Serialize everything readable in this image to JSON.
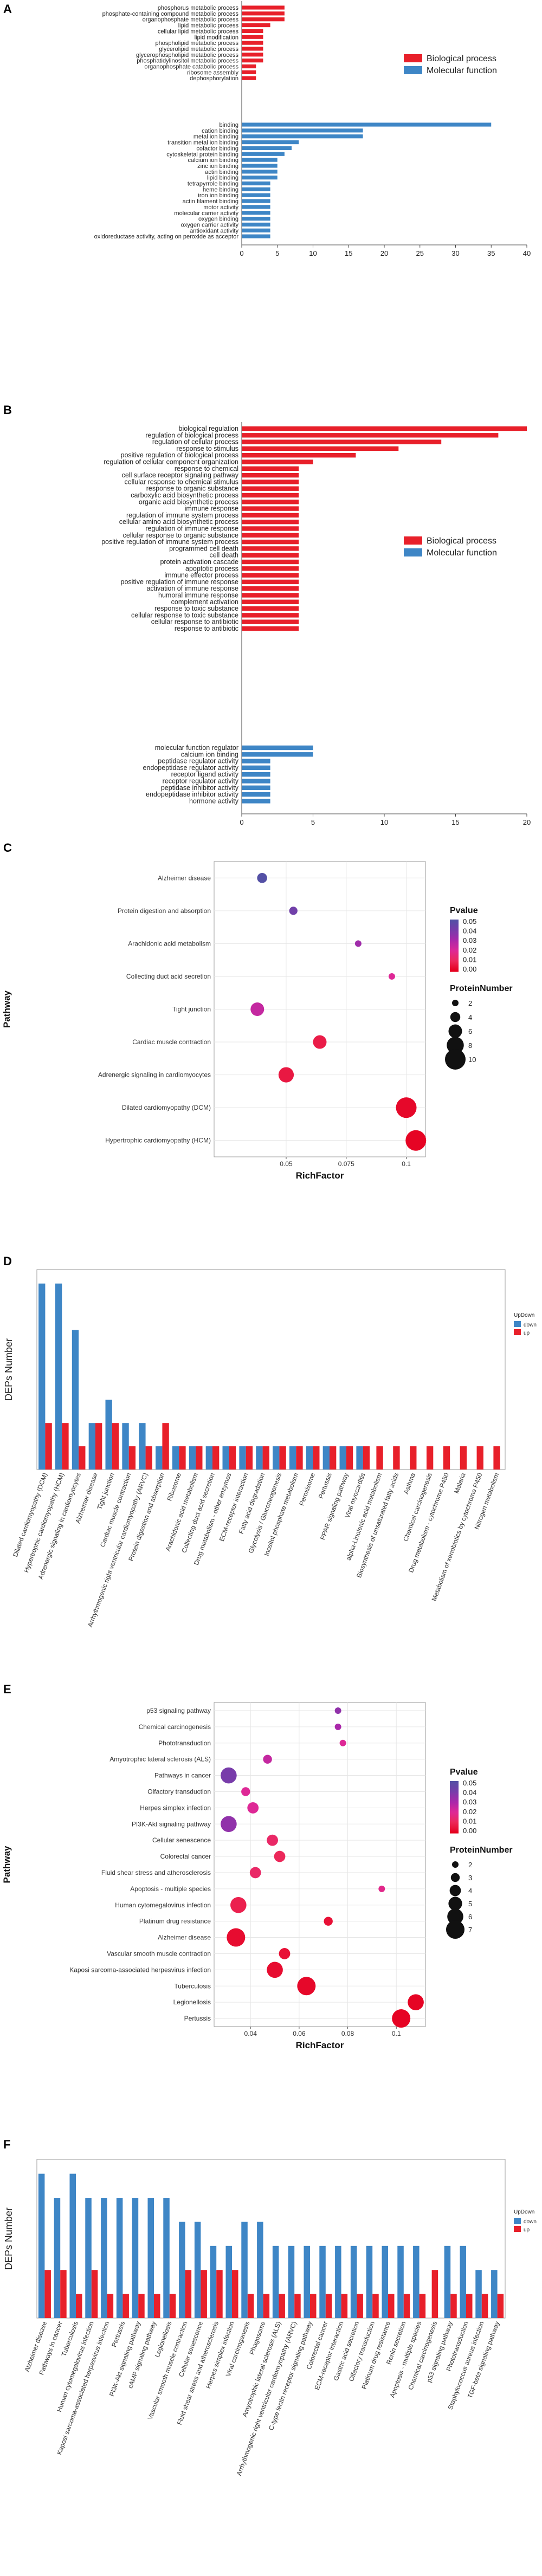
{
  "panels": {
    "A": "A",
    "B": "B",
    "C": "C",
    "D": "D",
    "E": "E",
    "F": "F"
  },
  "chart_data": [
    {
      "id": "A",
      "type": "bar",
      "orientation": "horizontal",
      "legend": [
        {
          "name": "Biological process",
          "color": "#e8202a"
        },
        {
          "name": "Molecular function",
          "color": "#3e86c6"
        }
      ],
      "xticks": [
        0,
        5,
        10,
        15,
        20,
        25,
        30,
        35,
        40
      ],
      "xlim": [
        0,
        40
      ],
      "groups": [
        {
          "name": "Biological process",
          "color": "#e8202a",
          "categories": [
            "phosphorus metabolic process",
            "phosphate-containing compound metabolic process",
            "organophosphate metabolic process",
            "lipid metabolic process",
            "cellular lipid metabolic process",
            "lipid modification",
            "phospholipid metabolic process",
            "glycerolipid metabolic process",
            "glycerophospholipid metabolic process",
            "phosphatidylinositol metabolic process",
            "organophosphate catabolic process",
            "ribosome assembly",
            "dephosphorylation"
          ],
          "values": [
            6,
            6,
            6,
            4,
            3,
            3,
            3,
            3,
            3,
            3,
            2,
            2,
            2
          ]
        },
        {
          "name": "Molecular function",
          "color": "#3e86c6",
          "categories": [
            "binding",
            "cation binding",
            "metal ion binding",
            "transition metal ion binding",
            "cofactor binding",
            "cytoskeletal protein binding",
            "calcium ion binding",
            "zinc ion binding",
            "actin binding",
            "lipid binding",
            "tetrapyrrole binding",
            "heme binding",
            "iron ion binding",
            "actin filament binding",
            "motor activity",
            "molecular carrier activity",
            "oxygen binding",
            "oxygen carrier activity",
            "antioxidant activity",
            "oxidoreductase activity, acting on peroxide as acceptor"
          ],
          "values": [
            35,
            17,
            17,
            8,
            7,
            6,
            5,
            5,
            5,
            5,
            4,
            4,
            4,
            4,
            4,
            4,
            4,
            4,
            4,
            4
          ]
        }
      ]
    },
    {
      "id": "B",
      "type": "bar",
      "orientation": "horizontal",
      "legend": [
        {
          "name": "Biological process",
          "color": "#e8202a"
        },
        {
          "name": "Molecular function",
          "color": "#3e86c6"
        }
      ],
      "xticks": [
        0,
        5,
        10,
        15,
        20
      ],
      "xlim": [
        0,
        20
      ],
      "groups": [
        {
          "name": "Biological process",
          "color": "#e8202a",
          "categories": [
            "biological regulation",
            "regulation of biological process",
            "regulation of cellular process",
            "response to stimulus",
            "positive regulation of biological process",
            "regulation of cellular component organization",
            "response to chemical",
            "cell surface receptor signaling pathway",
            "cellular response to chemical stimulus",
            "response to organic substance",
            "carboxylic acid biosynthetic process",
            "organic acid biosynthetic process",
            "immune response",
            "regulation of immune system process",
            "cellular amino acid biosynthetic process",
            "regulation of immune response",
            "cellular response to organic substance",
            "positive regulation of immune system process",
            "programmed cell death",
            "cell death",
            "protein activation cascade",
            "apoptotic process",
            "immune effector process",
            "positive regulation of immune response",
            "activation of immune response",
            "humoral immune response",
            "complement activation",
            "response to toxic substance",
            "cellular response to toxic substance",
            "cellular response to antibiotic",
            "response to antibiotic"
          ],
          "values": [
            20,
            18,
            14,
            11,
            8,
            5,
            4,
            4,
            4,
            4,
            4,
            4,
            4,
            4,
            4,
            4,
            4,
            4,
            4,
            4,
            4,
            4,
            4,
            4,
            4,
            4,
            4,
            4,
            4,
            4,
            4
          ]
        },
        {
          "name": "Molecular function",
          "color": "#3e86c6",
          "categories": [
            "molecular function regulator",
            "calcium ion binding",
            "peptidase regulator activity",
            "endopeptidase regulator activity",
            "receptor ligand activity",
            "receptor regulator activity",
            "peptidase inhibitor activity",
            "endopeptidase inhibitor activity",
            "hormone activity"
          ],
          "values": [
            5,
            5,
            2,
            2,
            2,
            2,
            2,
            2,
            2
          ]
        }
      ]
    },
    {
      "id": "C",
      "type": "scatter",
      "xlabel": "RichFactor",
      "ylabel": "Pathway",
      "xticks": [
        0.05,
        0.075,
        0.1
      ],
      "xlim": [
        0.02,
        0.108
      ],
      "categories": [
        "Alzheimer disease",
        "Protein digestion and absorption",
        "Arachidonic acid metabolism",
        "Collecting duct acid secretion",
        "Tight junction",
        "Cardiac muscle contraction",
        "Adrenergic signaling in cardiomyocytes",
        "Dilated cardiomyopathy (DCM)",
        "Hypertrophic cardiomyopathy (HCM)"
      ],
      "points": [
        {
          "x": 0.04,
          "pvalue": 0.05,
          "proteins": 4
        },
        {
          "x": 0.053,
          "pvalue": 0.042,
          "proteins": 3
        },
        {
          "x": 0.08,
          "pvalue": 0.032,
          "proteins": 2
        },
        {
          "x": 0.094,
          "pvalue": 0.02,
          "proteins": 2
        },
        {
          "x": 0.038,
          "pvalue": 0.025,
          "proteins": 6
        },
        {
          "x": 0.064,
          "pvalue": 0.007,
          "proteins": 6
        },
        {
          "x": 0.05,
          "pvalue": 0.006,
          "proteins": 7
        },
        {
          "x": 0.1,
          "pvalue": 0.002,
          "proteins": 10
        },
        {
          "x": 0.104,
          "pvalue": 0.001,
          "proteins": 10
        }
      ],
      "color_legend": {
        "title": "Pvalue",
        "ticks": [
          "0.05",
          "0.04",
          "0.03",
          "0.02",
          "0.01",
          "0.00"
        ]
      },
      "size_legend": {
        "title": "ProteinNumber",
        "values": [
          2,
          4,
          6,
          8,
          10
        ]
      }
    },
    {
      "id": "D",
      "type": "bar",
      "ylabel": "DEPs Number",
      "legend": {
        "title": "UpDown",
        "entries": [
          {
            "name": "down",
            "color": "#3e86c6"
          },
          {
            "name": "up",
            "color": "#e8202a"
          }
        ]
      },
      "categories": [
        "Dilated cardiomyopathy (DCM)",
        "Hypertrophic cardiomyopathy (HCM)",
        "Adrenergic signaling in cardiomyocytes",
        "Alzheimer disease",
        "Tight junction",
        "Cardiac muscle contraction",
        "Arrhythmogenic right ventricular cardiomyopathy (ARVC)",
        "Protein digestion and absorption",
        "Ribosome",
        "Arachidonic acid metabolism",
        "Collecting duct acid secretion",
        "Drug metabolism - other enzymes",
        "ECM-receptor interaction",
        "Fatty acid degradation",
        "Glycolysis / Gluconeogenesis",
        "Inositol phosphate metabolism",
        "Peroxisome",
        "Pertussis",
        "PPAR signaling pathway",
        "Viral myocarditis",
        "alpha-Linolenic acid metabolism",
        "Biosynthesis of unsaturated fatty acids",
        "Asthma",
        "Chemical carcinogenesis",
        "Drug metabolism - cytochrome P450",
        "Malaria",
        "Metabolism of xenobiotics by cytochrome P450",
        "Nitrogen metabolism"
      ],
      "series": [
        {
          "name": "down",
          "color": "#3e86c6",
          "values": [
            8,
            8,
            6,
            2,
            3,
            2,
            2,
            1,
            1,
            1,
            1,
            1,
            1,
            1,
            1,
            1,
            1,
            1,
            1,
            1,
            0,
            0,
            0,
            0,
            0,
            0,
            0,
            0
          ]
        },
        {
          "name": "up",
          "color": "#e8202a",
          "values": [
            2,
            2,
            1,
            2,
            2,
            1,
            1,
            2,
            1,
            1,
            1,
            1,
            1,
            1,
            1,
            1,
            1,
            1,
            1,
            1,
            1,
            1,
            1,
            1,
            1,
            1,
            1,
            1
          ]
        }
      ]
    },
    {
      "id": "E",
      "type": "scatter",
      "xlabel": "RichFactor",
      "ylabel": "Pathway",
      "xticks": [
        0.04,
        0.06,
        0.08,
        0.1
      ],
      "xlim": [
        0.025,
        0.112
      ],
      "categories": [
        "p53 signaling pathway",
        "Chemical carcinogenesis",
        "Phototransduction",
        "Amyotrophic lateral sclerosis (ALS)",
        "Pathways in cancer",
        "Olfactory transduction",
        "Herpes simplex infection",
        "PI3K-Akt signaling pathway",
        "Cellular senescence",
        "Colorectal cancer",
        "Fluid shear stress and atherosclerosis",
        "Apoptosis - multiple species",
        "Human cytomegalovirus infection",
        "Platinum drug resistance",
        "Alzheimer disease",
        "Vascular smooth muscle contraction",
        "Kaposi sarcoma-associated herpesvirus infection",
        "Tuberculosis",
        "Legionellosis",
        "Pertussis"
      ],
      "points": [
        {
          "x": 0.076,
          "pvalue": 0.035,
          "proteins": 2
        },
        {
          "x": 0.076,
          "pvalue": 0.03,
          "proteins": 2
        },
        {
          "x": 0.078,
          "pvalue": 0.02,
          "proteins": 2
        },
        {
          "x": 0.047,
          "pvalue": 0.025,
          "proteins": 3
        },
        {
          "x": 0.031,
          "pvalue": 0.04,
          "proteins": 6
        },
        {
          "x": 0.038,
          "pvalue": 0.02,
          "proteins": 3
        },
        {
          "x": 0.041,
          "pvalue": 0.02,
          "proteins": 4
        },
        {
          "x": 0.031,
          "pvalue": 0.035,
          "proteins": 6
        },
        {
          "x": 0.049,
          "pvalue": 0.012,
          "proteins": 4
        },
        {
          "x": 0.052,
          "pvalue": 0.01,
          "proteins": 4
        },
        {
          "x": 0.042,
          "pvalue": 0.012,
          "proteins": 4
        },
        {
          "x": 0.094,
          "pvalue": 0.018,
          "proteins": 2
        },
        {
          "x": 0.035,
          "pvalue": 0.008,
          "proteins": 6
        },
        {
          "x": 0.072,
          "pvalue": 0.004,
          "proteins": 3
        },
        {
          "x": 0.034,
          "pvalue": 0.003,
          "proteins": 7
        },
        {
          "x": 0.054,
          "pvalue": 0.004,
          "proteins": 4
        },
        {
          "x": 0.05,
          "pvalue": 0.003,
          "proteins": 6
        },
        {
          "x": 0.063,
          "pvalue": 0.002,
          "proteins": 7
        },
        {
          "x": 0.108,
          "pvalue": 0.001,
          "proteins": 6
        },
        {
          "x": 0.102,
          "pvalue": 0.001,
          "proteins": 7
        }
      ],
      "color_legend": {
        "title": "Pvalue",
        "ticks": [
          "0.05",
          "0.04",
          "0.03",
          "0.02",
          "0.01",
          "0.00"
        ]
      },
      "size_legend": {
        "title": "ProteinNumber",
        "values": [
          2,
          3,
          4,
          5,
          6,
          7
        ]
      }
    },
    {
      "id": "F",
      "type": "bar",
      "ylabel": "DEPs Number",
      "legend": {
        "title": "UpDown",
        "entries": [
          {
            "name": "down",
            "color": "#3e86c6"
          },
          {
            "name": "up",
            "color": "#e8202a"
          }
        ]
      },
      "categories": [
        "Alzheimer disease",
        "Pathways in cancer",
        "Tuberculosis",
        "Human cytomegalovirus infection",
        "Kaposi sarcoma-associated herpesvirus infection",
        "Pertussis",
        "PI3K-Akt signaling pathway",
        "cAMP signaling pathway",
        "Legionellosis",
        "Vascular smooth muscle contraction",
        "Cellular senescence",
        "Fluid shear stress and atherosclerosis",
        "Herpes simplex infection",
        "Viral carcinogenesis",
        "Phagosome",
        "Amyotrophic lateral sclerosis (ALS)",
        "Arrhythmogenic right ventricular cardiomyopathy (ARVC)",
        "C-type lectin receptor signaling pathway",
        "Colorectal cancer",
        "ECM-receptor interaction",
        "Gastric acid secretion",
        "Olfactory transduction",
        "Platinum drug resistance",
        "Renin secretion",
        "Apoptosis - multiple species",
        "Chemical carcinogenesis",
        "p53 signaling pathway",
        "Phototransduction",
        "Staphylococcus aureus infection",
        "TGF-beta signaling pathway"
      ],
      "series": [
        {
          "name": "down",
          "color": "#3e86c6",
          "values": [
            6,
            5,
            6,
            5,
            5,
            5,
            5,
            5,
            5,
            4,
            4,
            3,
            3,
            4,
            4,
            3,
            3,
            3,
            3,
            3,
            3,
            3,
            3,
            3,
            3,
            0,
            3,
            3,
            2,
            2
          ]
        },
        {
          "name": "up",
          "color": "#e8202a",
          "values": [
            2,
            2,
            1,
            2,
            1,
            1,
            1,
            1,
            1,
            2,
            2,
            2,
            2,
            1,
            1,
            1,
            1,
            1,
            1,
            1,
            1,
            1,
            1,
            1,
            1,
            2,
            1,
            1,
            1,
            1
          ]
        }
      ]
    }
  ]
}
